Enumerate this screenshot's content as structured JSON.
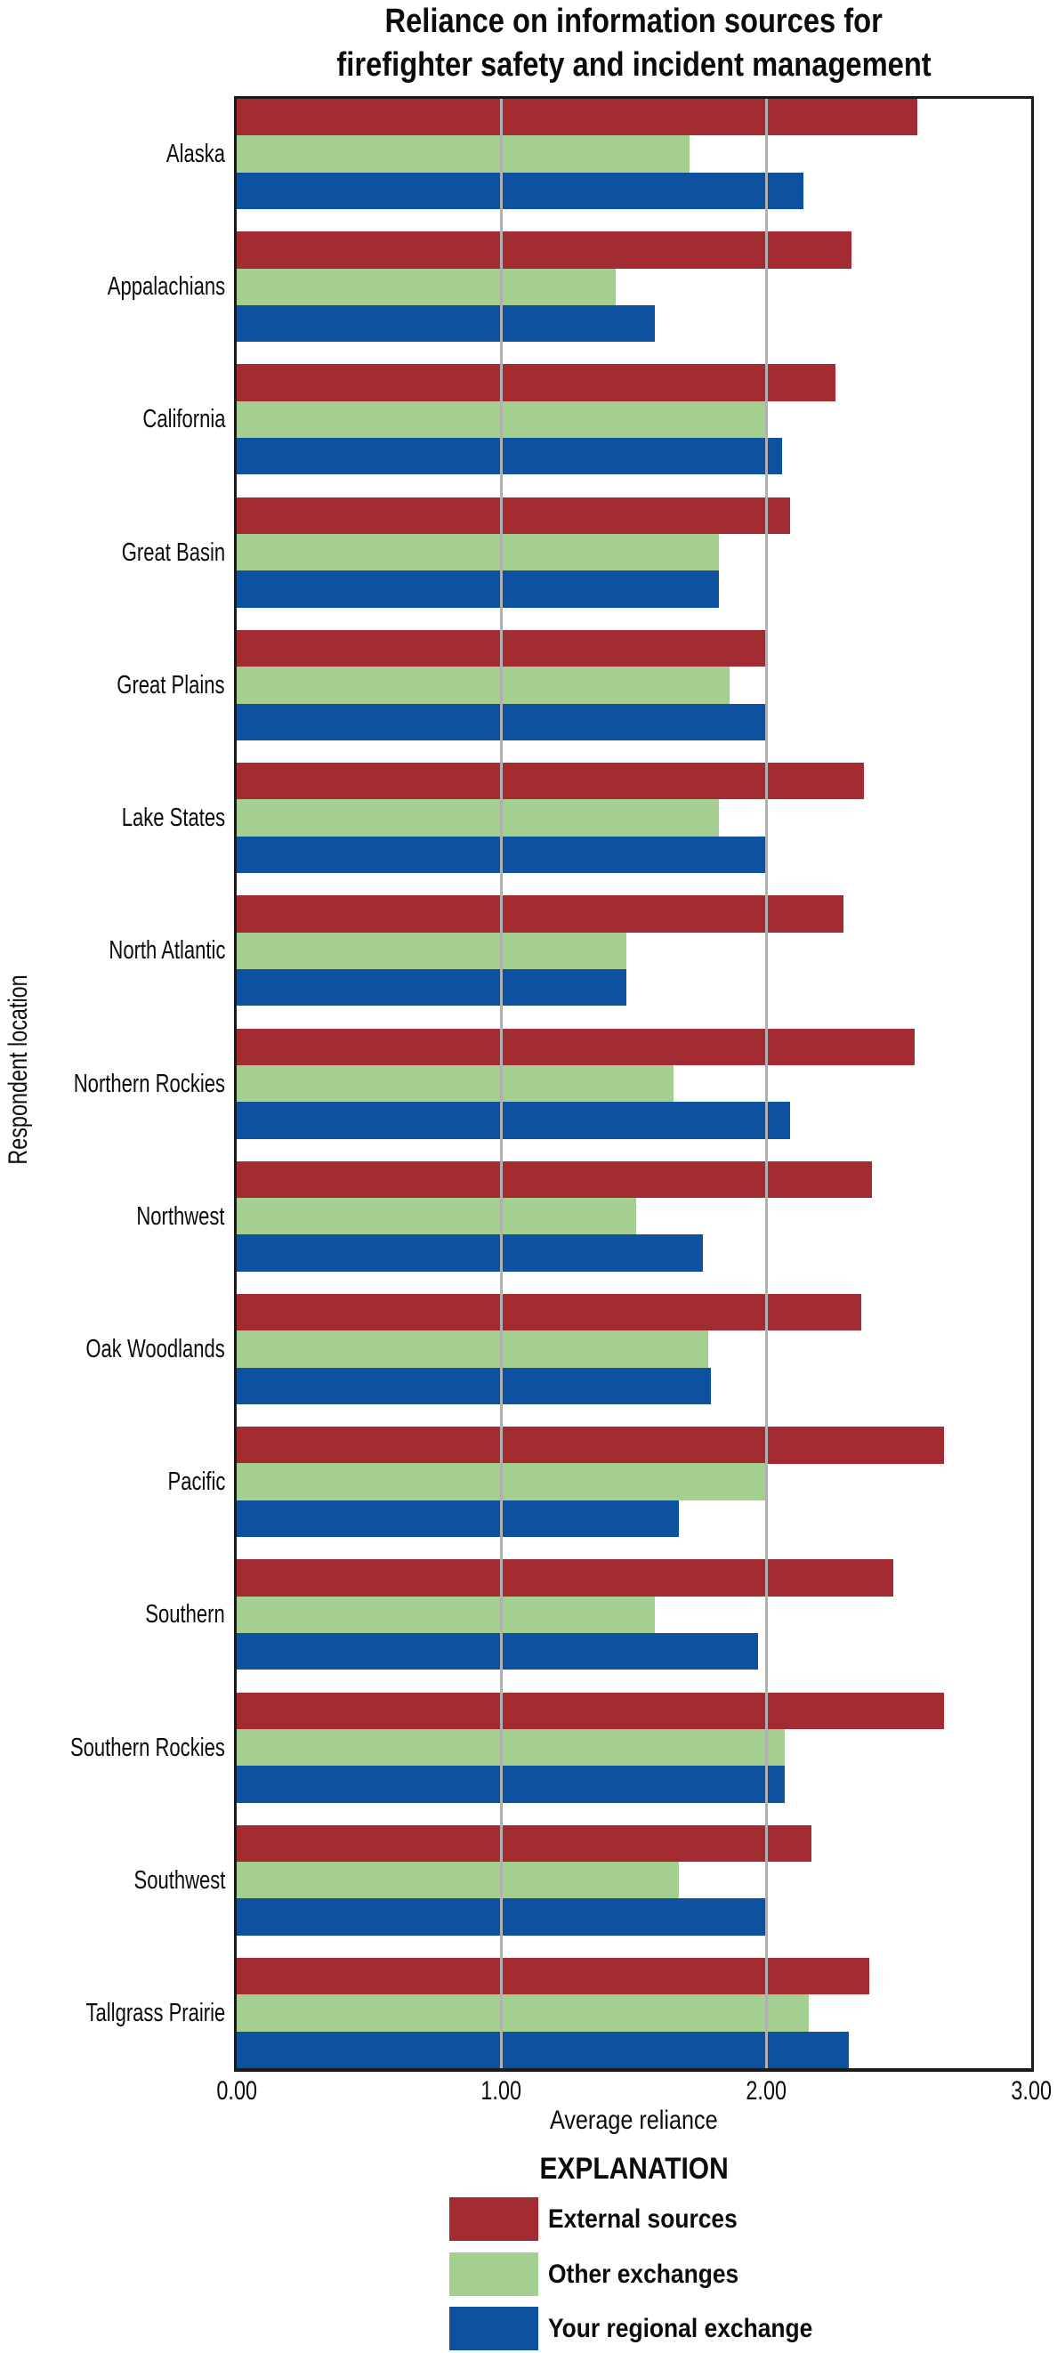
{
  "chart_data": {
    "type": "bar",
    "orientation": "horizontal",
    "title_lines": [
      "Reliance on information sources for",
      "firefighter safety and incident management"
    ],
    "xlabel": "Average reliance",
    "ylabel": "Respondent location",
    "xlim": [
      0,
      3
    ],
    "xticks": [
      0,
      1,
      2,
      3
    ],
    "xtick_labels": [
      "0.00",
      "1.00",
      "2.00",
      "3.00"
    ],
    "gridlines_at": [
      1,
      2
    ],
    "gridline_color": "#b0b0b0",
    "frame_color": "#1b1b1b",
    "legend_title": "EXPLANATION",
    "legend_position": "bottom",
    "categories": [
      "Alaska",
      "Appalachians",
      "California",
      "Great Basin",
      "Great Plains",
      "Lake States",
      "North Atlantic",
      "Northern Rockies",
      "Northwest",
      "Oak Woodlands",
      "Pacific",
      "Southern",
      "Southern Rockies",
      "Southwest",
      "Tallgrass Prairie"
    ],
    "series": [
      {
        "name": "External sources",
        "color": "#A32C33",
        "values": [
          2.57,
          2.32,
          2.26,
          2.09,
          2.0,
          2.37,
          2.29,
          2.56,
          2.4,
          2.36,
          2.67,
          2.48,
          2.67,
          2.17,
          2.39
        ]
      },
      {
        "name": "Other exchanges",
        "color": "#A5CF90",
        "values": [
          1.71,
          1.43,
          2.0,
          1.82,
          1.86,
          1.82,
          1.47,
          1.65,
          1.51,
          1.78,
          2.0,
          1.58,
          2.07,
          1.67,
          2.16
        ]
      },
      {
        "name": "Your regional exchange",
        "color": "#0E51A1",
        "values": [
          2.14,
          1.58,
          2.06,
          1.82,
          2.0,
          2.0,
          1.47,
          2.09,
          1.76,
          1.79,
          1.67,
          1.97,
          2.07,
          2.0,
          2.31
        ]
      }
    ]
  }
}
